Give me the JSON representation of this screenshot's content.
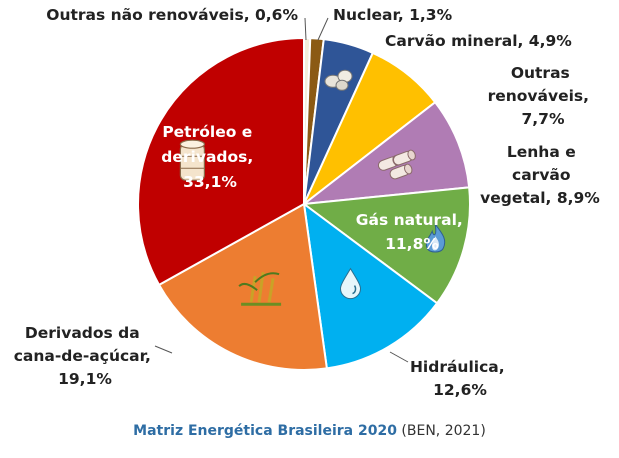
{
  "chart_data": {
    "type": "pie",
    "slices": [
      {
        "label": "Outras não renováveis",
        "value": 0.6,
        "display": "0,6%",
        "color": "#f2eedb"
      },
      {
        "label": "Nuclear",
        "value": 1.3,
        "display": "1,3%",
        "color": "#8b5a14"
      },
      {
        "label": "Carvão mineral",
        "value": 4.9,
        "display": "4,9%",
        "color": "#2f5597"
      },
      {
        "label": "Outras renováveis",
        "value": 7.7,
        "display": "7,7%",
        "color": "#ffc000"
      },
      {
        "label": "Lenha e carvão vegetal",
        "value": 8.9,
        "display": "8,9%",
        "color": "#b07cb4"
      },
      {
        "label": "Gás natural",
        "value": 11.8,
        "display": "11,8%",
        "color": "#70ad47"
      },
      {
        "label": "Hidráulica",
        "value": 12.6,
        "display": "12,6%",
        "color": "#00b0f0"
      },
      {
        "label": "Derivados da cana-de-açúcar",
        "value": 19.1,
        "display": "19,1%",
        "color": "#ed7d31"
      },
      {
        "label": "Petróleo e derivados",
        "value": 33.1,
        "display": "33,1%",
        "color": "#c00000"
      }
    ],
    "labels": {
      "outras_nao_renovaveis": "Outras não renováveis, 0,6%",
      "nuclear": "Nuclear, 1,3%",
      "carvao_mineral": "Carvão mineral, 4,9%",
      "outras_renovaveis": [
        "Outras",
        "renováveis,",
        "7,7%"
      ],
      "lenha": [
        "Lenha e",
        "carvão",
        "vegetal, 8,9%"
      ],
      "gas_natural": [
        "Gás natural,",
        "11,8%"
      ],
      "hidraulica": [
        "Hidráulica,",
        "12,6%"
      ],
      "cana": [
        "Derivados da",
        "cana-de-açúcar,",
        "19,1%"
      ],
      "petroleo": [
        "Petróleo e",
        "derivados,",
        "33,1%"
      ]
    }
  },
  "caption": {
    "title": "Matriz Energética Brasileira 2020",
    "source": "(BEN, 2021)"
  }
}
